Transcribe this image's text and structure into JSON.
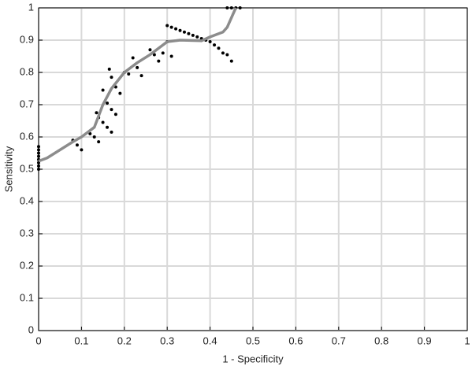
{
  "chart_data": {
    "type": "scatter",
    "x_label": "1 - Specificity",
    "y_label": "Sensitivity",
    "xlim": [
      0,
      1
    ],
    "ylim": [
      0,
      1
    ],
    "xticks": [
      0,
      0.1,
      0.2,
      0.3,
      0.4,
      0.5,
      0.6,
      0.7,
      0.8,
      0.9,
      1
    ],
    "yticks": [
      0,
      0.1,
      0.2,
      0.3,
      0.4,
      0.5,
      0.6,
      0.7,
      0.8,
      0.9,
      1
    ],
    "grid": true,
    "series": [
      {
        "mode": "markers",
        "color": "#000000",
        "x": [
          0,
          0,
          0,
          0,
          0,
          0,
          0,
          0,
          0.08,
          0.09,
          0.1,
          0.12,
          0.13,
          0.14,
          0.135,
          0.14,
          0.15,
          0.16,
          0.17,
          0.15,
          0.16,
          0.17,
          0.18,
          0.165,
          0.17,
          0.18,
          0.19,
          0.2,
          0.21,
          0.22,
          0.23,
          0.24,
          0.26,
          0.27,
          0.28,
          0.29,
          0.3,
          0.31,
          0.32,
          0.33,
          0.34,
          0.35,
          0.36,
          0.37,
          0.38,
          0.39,
          0.4,
          0.3,
          0.31,
          0.41,
          0.42,
          0.43,
          0.44,
          0.45,
          0.44,
          0.45,
          0.46,
          0.47
        ],
        "values": [
          0.5,
          0.51,
          0.52,
          0.53,
          0.54,
          0.55,
          0.56,
          0.57,
          0.59,
          0.575,
          0.56,
          0.61,
          0.6,
          0.585,
          0.675,
          0.66,
          0.645,
          0.63,
          0.615,
          0.745,
          0.705,
          0.685,
          0.67,
          0.81,
          0.785,
          0.755,
          0.735,
          0.8,
          0.795,
          0.845,
          0.815,
          0.79,
          0.87,
          0.855,
          0.835,
          0.86,
          0.945,
          0.94,
          0.935,
          0.93,
          0.925,
          0.92,
          0.915,
          0.91,
          0.905,
          0.9,
          0.895,
          0.895,
          0.85,
          0.885,
          0.875,
          0.86,
          0.855,
          0.835,
          1,
          1,
          1,
          1
        ]
      },
      {
        "mode": "line",
        "color": "#8c8c8c",
        "x": [
          0,
          0.02,
          0.05,
          0.08,
          0.1,
          0.13,
          0.15,
          0.17,
          0.2,
          0.23,
          0.26,
          0.28,
          0.3,
          0.33,
          0.38,
          0.4,
          0.43,
          0.44,
          0.46
        ],
        "values": [
          0.525,
          0.535,
          0.56,
          0.585,
          0.6,
          0.63,
          0.7,
          0.75,
          0.8,
          0.83,
          0.855,
          0.875,
          0.895,
          0.9,
          0.898,
          0.91,
          0.925,
          0.94,
          1
        ]
      }
    ]
  }
}
